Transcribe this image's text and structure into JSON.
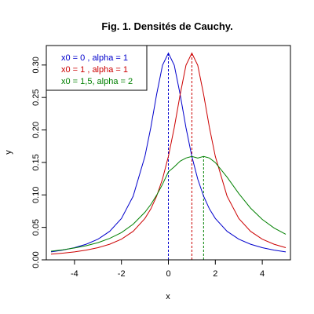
{
  "chart_data": {
    "type": "line",
    "title": "Fig. 1. Densités de Cauchy.",
    "xlabel": "x",
    "ylabel": "y",
    "xlim": [
      -5.2,
      5.2
    ],
    "ylim": [
      0,
      0.33
    ],
    "xticks": [
      {
        "value": -4,
        "label": "-4"
      },
      {
        "value": -2,
        "label": "-2"
      },
      {
        "value": 0,
        "label": "0"
      },
      {
        "value": 2,
        "label": "2"
      },
      {
        "value": 4,
        "label": "4"
      }
    ],
    "yticks": [
      {
        "value": 0.0,
        "label": "0.00"
      },
      {
        "value": 0.05,
        "label": "0.05"
      },
      {
        "value": 0.1,
        "label": "0.10"
      },
      {
        "value": 0.15,
        "label": "0.15"
      },
      {
        "value": 0.2,
        "label": "0.20"
      },
      {
        "value": 0.25,
        "label": "0.25"
      },
      {
        "value": 0.3,
        "label": "0.30"
      }
    ],
    "x": [
      -5,
      -4.5,
      -4,
      -3.5,
      -3,
      -2.5,
      -2,
      -1.5,
      -1,
      -0.75,
      -0.5,
      -0.25,
      0,
      0.25,
      0.5,
      0.75,
      1,
      1.25,
      1.5,
      1.75,
      2,
      2.5,
      3,
      3.5,
      4,
      4.5,
      5
    ],
    "series": [
      {
        "legend": "x0 = 0    , alpha = 1",
        "color": "#0000cc",
        "x0": 0,
        "values": [
          0.0122,
          0.015,
          0.0187,
          0.0241,
          0.0318,
          0.0439,
          0.0637,
          0.0979,
          0.1592,
          0.2037,
          0.2546,
          0.2996,
          0.3183,
          0.2996,
          0.2546,
          0.2037,
          0.1592,
          0.1244,
          0.0979,
          0.0783,
          0.0637,
          0.0439,
          0.0318,
          0.0241,
          0.0187,
          0.015,
          0.0122
        ]
      },
      {
        "legend": "x0 = 1    , alpha = 1",
        "color": "#cc0000",
        "x0": 1,
        "values": [
          0.0087,
          0.0103,
          0.0122,
          0.015,
          0.0187,
          0.0241,
          0.0318,
          0.0439,
          0.0637,
          0.0783,
          0.0979,
          0.1244,
          0.1592,
          0.2037,
          0.2546,
          0.2996,
          0.3183,
          0.2996,
          0.2546,
          0.2037,
          0.1592,
          0.0979,
          0.0637,
          0.0439,
          0.0318,
          0.0241,
          0.0187
        ]
      },
      {
        "legend": "x0 = 1,5, alpha = 2",
        "color": "#008000",
        "x0": 1.5,
        "values": [
          0.0133,
          0.0155,
          0.0182,
          0.0218,
          0.0265,
          0.033,
          0.042,
          0.0549,
          0.0733,
          0.0852,
          0.0995,
          0.1163,
          0.1355,
          0.1432,
          0.1519,
          0.1568,
          0.1592,
          0.1568,
          0.1592,
          0.1568,
          0.1498,
          0.1273,
          0.102,
          0.0796,
          0.0622,
          0.0491,
          0.0394
        ]
      }
    ],
    "vlines": [
      0,
      1,
      1.5
    ],
    "legend_position": "top-left"
  }
}
